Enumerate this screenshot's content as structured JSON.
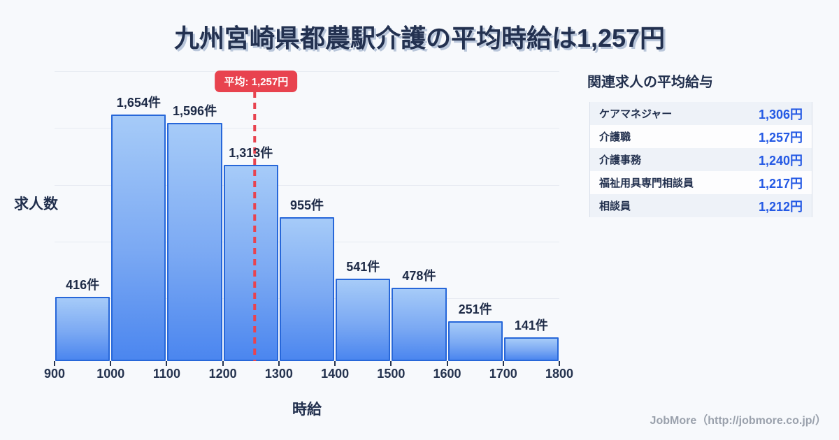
{
  "title": "九州宮崎県都農駅介護の平均時給は1,257円",
  "chart_data": {
    "type": "bar",
    "subtype": "histogram",
    "title": "九州宮崎県都農駅介護の平均時給は1,257円",
    "xlabel": "時給",
    "ylabel": "求人数",
    "bin_edges": [
      900,
      1000,
      1100,
      1200,
      1300,
      1400,
      1500,
      1600,
      1700,
      1800
    ],
    "x_tick_labels": [
      "900",
      "1000",
      "1100",
      "1200",
      "1300",
      "1400",
      "1500",
      "1600",
      "1700",
      "1800"
    ],
    "values": [
      416,
      1654,
      1596,
      1313,
      955,
      541,
      478,
      251,
      141
    ],
    "bar_labels": [
      "416件",
      "1,654件",
      "1,596件",
      "1,313件",
      "955件",
      "541件",
      "478件",
      "251件",
      "141件"
    ],
    "average": 1257,
    "average_label": "平均: 1,257円",
    "xlim": [
      900,
      1800
    ],
    "ylim": [
      0,
      1980
    ],
    "grid": "horizontal",
    "legend": "none"
  },
  "panel": {
    "title": "関連求人の平均給与",
    "rows": [
      {
        "label": "ケアマネジャー",
        "value": "1,306円"
      },
      {
        "label": "介護職",
        "value": "1,257円"
      },
      {
        "label": "介護事務",
        "value": "1,240円"
      },
      {
        "label": "福祉用具専門相談員",
        "value": "1,217円"
      },
      {
        "label": "相談員",
        "value": "1,212円"
      }
    ]
  },
  "footer": {
    "credit": "JobMore（http://jobmore.co.jp/）"
  },
  "colors": {
    "background": "#f7f9fc",
    "title_text": "#233150",
    "title_shadow": "#b9c6da",
    "bar_border": "#2767d9",
    "bar_gradient_top": "#a6cbf8",
    "bar_gradient_bottom": "#4b86ef",
    "average_red": "#e8434f",
    "value_blue": "#2459e4",
    "gridline": "#e7ebf2",
    "table_border": "#d8dee9",
    "row_alt_background": "#eef2f8",
    "footer_gray": "#9aa1ac"
  }
}
